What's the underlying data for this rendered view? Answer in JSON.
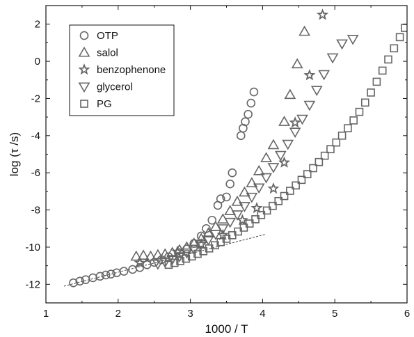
{
  "chart_data": {
    "type": "scatter",
    "title": "",
    "xlabel": "1000 / T",
    "ylabel": "log (τ /s)",
    "xlim": [
      1,
      6
    ],
    "ylim": [
      -13,
      3
    ],
    "xticks": [
      1,
      2,
      3,
      4,
      5,
      6
    ],
    "yticks": [
      -12,
      -10,
      -8,
      -6,
      -4,
      -2,
      0,
      2
    ],
    "grid": false,
    "legend_position": "top-left",
    "series": [
      {
        "name": "OTP",
        "marker": "circle",
        "points": [
          [
            1.38,
            -11.92
          ],
          [
            1.47,
            -11.83
          ],
          [
            1.55,
            -11.75
          ],
          [
            1.65,
            -11.65
          ],
          [
            1.75,
            -11.57
          ],
          [
            1.83,
            -11.5
          ],
          [
            1.9,
            -11.45
          ],
          [
            1.98,
            -11.38
          ],
          [
            2.08,
            -11.3
          ],
          [
            2.2,
            -11.2
          ],
          [
            2.3,
            -11.1
          ],
          [
            2.4,
            -10.95
          ],
          [
            2.5,
            -10.82
          ],
          [
            2.6,
            -10.68
          ],
          [
            2.7,
            -10.52
          ],
          [
            2.85,
            -10.3
          ],
          [
            2.95,
            -10.1
          ],
          [
            3.05,
            -9.8
          ],
          [
            3.15,
            -9.4
          ],
          [
            3.22,
            -9.0
          ],
          [
            3.3,
            -8.55
          ],
          [
            3.38,
            -7.75
          ],
          [
            3.42,
            -7.4
          ],
          [
            3.5,
            -7.3
          ],
          [
            3.55,
            -6.6
          ],
          [
            3.58,
            -6.0
          ],
          [
            3.7,
            -4.0
          ],
          [
            3.73,
            -3.6
          ],
          [
            3.76,
            -3.25
          ],
          [
            3.8,
            -2.85
          ],
          [
            3.84,
            -2.25
          ],
          [
            3.88,
            -1.65
          ]
        ]
      },
      {
        "name": "salol",
        "marker": "triangle-up",
        "points": [
          [
            2.25,
            -10.5
          ],
          [
            2.35,
            -10.45
          ],
          [
            2.45,
            -10.5
          ],
          [
            2.55,
            -10.42
          ],
          [
            2.65,
            -10.38
          ],
          [
            2.75,
            -10.3
          ],
          [
            2.85,
            -10.15
          ],
          [
            2.95,
            -10.0
          ],
          [
            3.05,
            -9.8
          ],
          [
            3.15,
            -9.55
          ],
          [
            3.25,
            -9.25
          ],
          [
            3.35,
            -8.9
          ],
          [
            3.45,
            -8.5
          ],
          [
            3.55,
            -8.05
          ],
          [
            3.65,
            -7.55
          ],
          [
            3.75,
            -7.05
          ],
          [
            3.85,
            -6.55
          ],
          [
            3.95,
            -5.9
          ],
          [
            4.05,
            -5.2
          ],
          [
            4.15,
            -4.5
          ],
          [
            4.3,
            -3.25
          ],
          [
            4.38,
            -1.8
          ],
          [
            4.48,
            -0.15
          ],
          [
            4.58,
            1.6
          ]
        ]
      },
      {
        "name": "benzophenone",
        "marker": "star",
        "points": [
          [
            2.3,
            -10.85
          ],
          [
            2.82,
            -10.25
          ],
          [
            3.15,
            -9.85
          ],
          [
            3.45,
            -9.35
          ],
          [
            3.72,
            -8.55
          ],
          [
            3.92,
            -7.9
          ],
          [
            4.15,
            -6.85
          ],
          [
            4.3,
            -5.45
          ],
          [
            4.45,
            -3.3
          ],
          [
            4.65,
            -0.75
          ],
          [
            4.83,
            2.5
          ]
        ]
      },
      {
        "name": "glycerol",
        "marker": "triangle-down",
        "points": [
          [
            2.55,
            -10.9
          ],
          [
            2.65,
            -10.8
          ],
          [
            2.75,
            -10.65
          ],
          [
            2.85,
            -10.5
          ],
          [
            2.95,
            -10.3
          ],
          [
            3.05,
            -10.1
          ],
          [
            3.15,
            -9.85
          ],
          [
            3.25,
            -9.6
          ],
          [
            3.35,
            -9.3
          ],
          [
            3.45,
            -9.0
          ],
          [
            3.55,
            -8.65
          ],
          [
            3.65,
            -8.25
          ],
          [
            3.75,
            -7.8
          ],
          [
            3.85,
            -7.3
          ],
          [
            3.95,
            -6.8
          ],
          [
            4.05,
            -6.25
          ],
          [
            4.15,
            -5.7
          ],
          [
            4.25,
            -5.05
          ],
          [
            4.35,
            -4.45
          ],
          [
            4.45,
            -3.8
          ],
          [
            4.55,
            -3.1
          ],
          [
            4.65,
            -2.35
          ],
          [
            4.75,
            -1.55
          ],
          [
            4.85,
            -0.7
          ],
          [
            4.97,
            0.2
          ],
          [
            5.1,
            0.95
          ],
          [
            5.25,
            1.2
          ]
        ]
      },
      {
        "name": "PG",
        "marker": "square",
        "points": [
          [
            2.7,
            -10.95
          ],
          [
            2.78,
            -10.85
          ],
          [
            2.86,
            -10.75
          ],
          [
            2.94,
            -10.62
          ],
          [
            3.02,
            -10.5
          ],
          [
            3.1,
            -10.36
          ],
          [
            3.18,
            -10.22
          ],
          [
            3.26,
            -10.07
          ],
          [
            3.34,
            -9.9
          ],
          [
            3.42,
            -9.73
          ],
          [
            3.5,
            -9.55
          ],
          [
            3.58,
            -9.36
          ],
          [
            3.66,
            -9.16
          ],
          [
            3.74,
            -8.95
          ],
          [
            3.82,
            -8.73
          ],
          [
            3.9,
            -8.5
          ],
          [
            3.98,
            -8.27
          ],
          [
            4.06,
            -8.03
          ],
          [
            4.14,
            -7.78
          ],
          [
            4.22,
            -7.52
          ],
          [
            4.3,
            -7.25
          ],
          [
            4.38,
            -6.97
          ],
          [
            4.46,
            -6.68
          ],
          [
            4.54,
            -6.38
          ],
          [
            4.62,
            -6.07
          ],
          [
            4.7,
            -5.75
          ],
          [
            4.78,
            -5.42
          ],
          [
            4.86,
            -5.08
          ],
          [
            4.94,
            -4.73
          ],
          [
            5.02,
            -4.37
          ],
          [
            5.1,
            -4.0
          ],
          [
            5.18,
            -3.6
          ],
          [
            5.26,
            -3.18
          ],
          [
            5.34,
            -2.72
          ],
          [
            5.42,
            -2.22
          ],
          [
            5.5,
            -1.68
          ],
          [
            5.58,
            -1.1
          ],
          [
            5.66,
            -0.5
          ],
          [
            5.74,
            0.1
          ],
          [
            5.82,
            0.7
          ],
          [
            5.9,
            1.3
          ],
          [
            5.97,
            1.8
          ]
        ]
      }
    ],
    "fit_line": {
      "style": "dashed",
      "x": [
        1.25,
        4.05
      ],
      "y": [
        -12.1,
        -9.3
      ]
    }
  },
  "colors": {
    "marker_stroke": "#666666",
    "axis": "#111111",
    "fit_line": "#444444",
    "background": "#ffffff"
  }
}
